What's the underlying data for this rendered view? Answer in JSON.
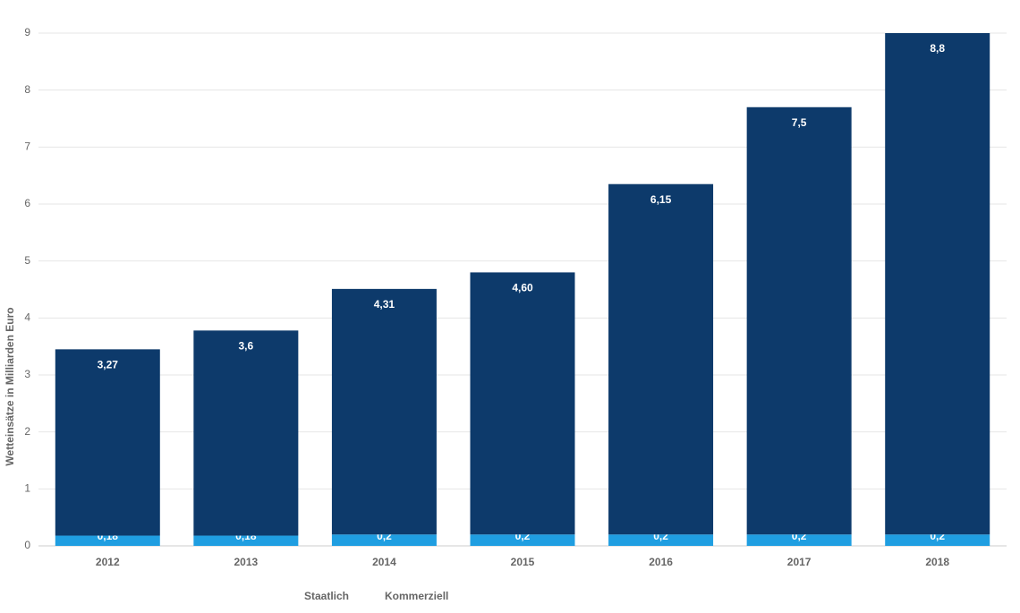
{
  "chart_data": {
    "type": "stacked_bar",
    "y_label": "Wetteinsätze in Milliarden Euro",
    "categories": [
      "2012",
      "2013",
      "2014",
      "2015",
      "2016",
      "2017",
      "2018"
    ],
    "series": [
      {
        "name": "Staatlich",
        "color": "#1f9ee1",
        "values": [
          0.18,
          0.18,
          0.2,
          0.2,
          0.2,
          0.2,
          0.2
        ],
        "value_labels": [
          "0,18",
          "0,18",
          "0,2",
          "0,2",
          "0,2",
          "0,2",
          "0,2"
        ]
      },
      {
        "name": "Kommerziell",
        "color": "#0d3a6b",
        "values": [
          3.27,
          3.6,
          4.31,
          4.6,
          6.15,
          7.5,
          8.8
        ],
        "value_labels": [
          "3,27",
          "3,6",
          "4,31",
          "4,60",
          "6,15",
          "7,5",
          "8,8"
        ]
      }
    ],
    "ylim": [
      0,
      9
    ],
    "yticks": [
      0,
      1,
      2,
      3,
      4,
      5,
      6,
      7,
      8,
      9
    ],
    "grid": true
  }
}
